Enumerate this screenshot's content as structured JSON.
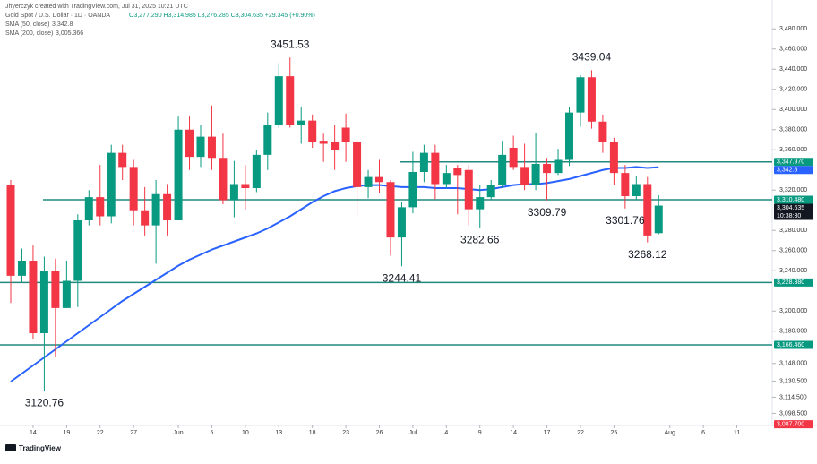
{
  "header": {
    "credit": "Jhyerczyk created with TradingView.com, Jul 31, 2025 10:21 UTC",
    "symbol": "Gold Spot / U.S. Dollar · 1D · OANDA",
    "ohlc": "O3,277.290 H3,314.985 L3,276.285 C3,304.635 +29.345 (+0.90%)",
    "indicators": [
      {
        "name": "SMA (50, close)",
        "value": "3,342.8",
        "color": "#2962ff"
      },
      {
        "name": "SMA (200, close)",
        "value": "3,005.366",
        "color": "#2962ff"
      }
    ]
  },
  "footer": {
    "brand": "TradingView"
  },
  "chart_data": {
    "type": "candlestick",
    "open": [
      3325,
      3235,
      3250,
      3178,
      3240,
      3203,
      3230,
      3290,
      3313,
      3294,
      3357,
      3343,
      3300,
      3285,
      3316,
      3290,
      3380,
      3353,
      3373,
      3352,
      3310,
      3326,
      3322,
      3355,
      3385,
      3433,
      3385,
      3389,
      3369,
      3368,
      3382,
      3368,
      3323,
      3333,
      3328,
      3273,
      3303,
      3338,
      3357,
      3326,
      3342,
      3340,
      3301,
      3313,
      3325,
      3362,
      3343,
      3325,
      3346,
      3337,
      3350,
      3397,
      3432,
      3388,
      3368,
      3337,
      3314,
      3326,
      3277.29
    ],
    "high": [
      3330,
      3262,
      3265,
      3254,
      3252,
      3250,
      3296,
      3320,
      3345,
      3365,
      3365,
      3350,
      3323,
      3330,
      3326,
      3393,
      3393,
      3385,
      3404,
      3376,
      3349,
      3345,
      3360,
      3397,
      3446,
      3451.53,
      3403,
      3395,
      3376,
      3385,
      3396,
      3370,
      3340,
      3350,
      3330,
      3308,
      3358,
      3365,
      3365,
      3345,
      3345,
      3345,
      3325,
      3330,
      3369,
      3374,
      3366,
      3377,
      3352,
      3361,
      3402,
      3434,
      3439.04,
      3395,
      3372,
      3345,
      3334,
      3333,
      3314.985
    ],
    "low": [
      3208,
      3228,
      3172,
      3120.76,
      3155,
      3203,
      3204,
      3285,
      3285,
      3287,
      3330,
      3285,
      3275,
      3247,
      3275,
      3290,
      3340,
      3343,
      3340,
      3306,
      3293,
      3301,
      3318,
      3340,
      3382,
      3382,
      3366,
      3362,
      3348,
      3340,
      3348,
      3295,
      3312,
      3317,
      3255,
      3244.41,
      3297,
      3328,
      3311,
      3322,
      3296,
      3285,
      3282.66,
      3310,
      3322,
      3340,
      3320,
      3320,
      3309.79,
      3335,
      3344,
      3383,
      3381,
      3357,
      3325,
      3301.76,
      3310,
      3268.12,
      3276.285
    ],
    "close": [
      3235,
      3250,
      3178,
      3240,
      3203,
      3230,
      3290,
      3313,
      3294,
      3357,
      3343,
      3300,
      3285,
      3316,
      3290,
      3380,
      3353,
      3373,
      3352,
      3310,
      3326,
      3322,
      3355,
      3385,
      3433,
      3385,
      3389,
      3368,
      3366,
      3360,
      3368,
      3323,
      3333,
      3328,
      3273,
      3303,
      3338,
      3357,
      3326,
      3337,
      3335,
      3301,
      3313,
      3325,
      3355,
      3343,
      3325,
      3346,
      3337,
      3350,
      3397,
      3432,
      3388,
      3368,
      3337,
      3314,
      3326,
      3275,
      3304.635
    ],
    "sma": {
      "values": [
        3130,
        3138,
        3146,
        3154,
        3162,
        3170,
        3178,
        3186,
        3194,
        3202,
        3210,
        3217,
        3224,
        3231,
        3238,
        3245,
        3251,
        3256,
        3261,
        3265,
        3269,
        3273,
        3277,
        3282,
        3288,
        3294,
        3301,
        3308,
        3314,
        3319,
        3322,
        3324,
        3325,
        3325,
        3324,
        3323,
        3323,
        3323,
        3322,
        3322,
        3322,
        3321,
        3320,
        3321,
        3323,
        3325,
        3326,
        3326,
        3327,
        3329,
        3331,
        3334,
        3337,
        3340,
        3342,
        3342,
        3343,
        3342,
        3342.8
      ],
      "color": "#2962ff"
    },
    "up_color": "#089981",
    "down_color": "#f23645",
    "high_labels": [
      3451.53,
      3439.04
    ],
    "low_labels": [
      3120.76,
      3244.41,
      3282.66,
      3309.79,
      3301.76,
      3268.12
    ],
    "levels": [
      {
        "value": 3310.48,
        "color": "#22897e"
      },
      {
        "value": 3347.97,
        "color": "#22897e"
      },
      {
        "value": 3228.38,
        "color": "#22897e"
      },
      {
        "value": 3166.46,
        "color": "#22897e"
      }
    ],
    "tags": [
      {
        "value": 3347.97,
        "label": "3,347.970",
        "color": "#089981"
      },
      {
        "value": 3342.8,
        "label": "3,342.8",
        "color": "#2962ff"
      },
      {
        "value": 3310.48,
        "label": "3,310.480",
        "color": "#089981"
      },
      {
        "value": 3304.635,
        "label": "3,304.635",
        "sub": "10:38:30",
        "color": "#131722"
      },
      {
        "value": 3228.38,
        "label": "3,228.380",
        "color": "#089981"
      },
      {
        "value": 3166.46,
        "label": "3,166.460",
        "color": "#089981"
      },
      {
        "value": 3087.7,
        "label": "3,087.700",
        "color": "#f23645"
      }
    ],
    "ylim": [
      3090,
      3490
    ],
    "yticks": [
      {
        "value": 3480,
        "label": "3,480.000"
      },
      {
        "value": 3460,
        "label": "3,460.000"
      },
      {
        "value": 3440,
        "label": "3,440.000"
      },
      {
        "value": 3420,
        "label": "3,420.000"
      },
      {
        "value": 3400,
        "label": "3,400.000"
      },
      {
        "value": 3380,
        "label": "3,380.000"
      },
      {
        "value": 3360,
        "label": "3,360.000"
      },
      {
        "value": 3320,
        "label": "3,320.000"
      },
      {
        "value": 3280,
        "label": "3,280.000"
      },
      {
        "value": 3260,
        "label": "3,260.000"
      },
      {
        "value": 3240,
        "label": "3,240.000"
      },
      {
        "value": 3200,
        "label": "3,200.000"
      },
      {
        "value": 3180,
        "label": "3,180.000"
      },
      {
        "value": 3148,
        "label": "3,148.000"
      },
      {
        "value": 3130.5,
        "label": "3,130.500"
      },
      {
        "value": 3114.5,
        "label": "3,114.500"
      },
      {
        "value": 3098.5,
        "label": "3,098.500"
      }
    ],
    "xlim": [
      0,
      70
    ],
    "xticks": [
      {
        "value": 2,
        "label": "14"
      },
      {
        "value": 5,
        "label": "19"
      },
      {
        "value": 8,
        "label": "22"
      },
      {
        "value": 11,
        "label": "27"
      },
      {
        "value": 15,
        "label": "Jun"
      },
      {
        "value": 18,
        "label": "5"
      },
      {
        "value": 21,
        "label": "10"
      },
      {
        "value": 24,
        "label": "13"
      },
      {
        "value": 27,
        "label": "18"
      },
      {
        "value": 30,
        "label": "23"
      },
      {
        "value": 33,
        "label": "26"
      },
      {
        "value": 36,
        "label": "Jul"
      },
      {
        "value": 39,
        "label": "4"
      },
      {
        "value": 42,
        "label": "9"
      },
      {
        "value": 45,
        "label": "14"
      },
      {
        "value": 48,
        "label": "17"
      },
      {
        "value": 51,
        "label": "22"
      },
      {
        "value": 54,
        "label": "25"
      },
      {
        "value": 59,
        "label": "Aug"
      },
      {
        "value": 62,
        "label": "6"
      },
      {
        "value": 65,
        "label": "11"
      }
    ]
  }
}
